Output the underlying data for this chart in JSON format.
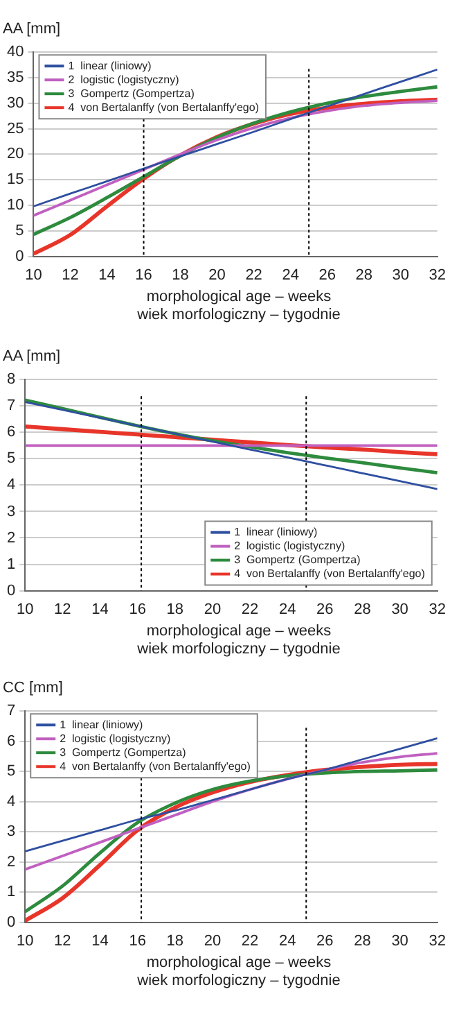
{
  "chart_data": [
    {
      "type": "line",
      "ylabel": "AA [mm]",
      "xlabel": "morphological age – weeks\nwiek morfologiczny – tygodnie",
      "x": [
        10,
        12,
        14,
        16,
        18,
        20,
        22,
        24,
        26,
        28,
        30,
        32
      ],
      "xlim": [
        10,
        32
      ],
      "xticks": [
        10,
        12,
        14,
        16,
        18,
        20,
        22,
        24,
        26,
        28,
        30,
        32
      ],
      "ylim": [
        0,
        40
      ],
      "yticks": [
        0,
        5,
        10,
        15,
        20,
        25,
        30,
        35,
        40
      ],
      "grid": "y",
      "legend": "top left",
      "marker": "none",
      "line_style": "solid",
      "series": [
        {
          "name": "1  linear (liniowy)",
          "color": "#2e4fa0",
          "values": [
            9.8,
            12.3,
            14.7,
            17.2,
            19.6,
            22.0,
            24.4,
            26.9,
            29.4,
            31.8,
            34.2,
            36.6
          ]
        },
        {
          "name": "2  logistic (logistyczny)",
          "color": "#c060c0",
          "values": [
            8.0,
            11.0,
            14.0,
            17.0,
            20.0,
            22.8,
            25.2,
            27.1,
            28.5,
            29.5,
            30.1,
            30.5
          ]
        },
        {
          "name": "3  Gompertz (Gompertza)",
          "color": "#2e8b3e",
          "values": [
            4.3,
            7.6,
            11.5,
            15.6,
            19.7,
            23.3,
            26.1,
            28.3,
            30.0,
            31.3,
            32.3,
            33.2
          ]
        },
        {
          "name": "4  von Bertalanffy (von Bertalanffy'ego)",
          "color": "#e8352a",
          "values": [
            0.5,
            4.2,
            9.8,
            15.2,
            19.8,
            23.4,
            26.0,
            27.9,
            29.1,
            29.9,
            30.4,
            30.7
          ]
        }
      ],
      "ref_lines": [
        {
          "axis": "x",
          "value": 16,
          "color": "#000000",
          "line_style": "dotted"
        },
        {
          "axis": "x",
          "value": 25,
          "color": "#000000",
          "line_style": "dotted"
        }
      ]
    },
    {
      "type": "line",
      "ylabel": "AA [mm]",
      "xlabel": "morphological age – weeks\nwiek morfologiczny – tygodnie",
      "x": [
        10,
        12,
        14,
        16,
        18,
        20,
        22,
        24,
        26,
        28,
        30,
        32
      ],
      "xlim": [
        10,
        32
      ],
      "xticks": [
        10,
        12,
        14,
        16,
        18,
        20,
        22,
        24,
        26,
        28,
        30,
        32
      ],
      "ylim": [
        0,
        8
      ],
      "yticks": [
        0,
        1,
        2,
        3,
        4,
        5,
        6,
        7,
        8
      ],
      "grid": "y",
      "legend": "bottom right",
      "marker": "none",
      "line_style": "solid",
      "series": [
        {
          "name": "1  linear (liniowy)",
          "color": "#2e4fa0",
          "values": [
            7.15,
            6.85,
            6.55,
            6.25,
            5.95,
            5.65,
            5.35,
            5.05,
            4.75,
            4.45,
            4.15,
            3.85
          ]
        },
        {
          "name": "2  logistic (logistyczny)",
          "color": "#c060c0",
          "values": [
            5.5,
            5.5,
            5.5,
            5.5,
            5.5,
            5.5,
            5.5,
            5.5,
            5.5,
            5.5,
            5.5,
            5.5
          ]
        },
        {
          "name": "3  Gompertz (Gompertza)",
          "color": "#2e8b3e",
          "values": [
            7.22,
            6.9,
            6.57,
            6.25,
            5.95,
            5.68,
            5.45,
            5.23,
            5.03,
            4.85,
            4.65,
            4.47
          ]
        },
        {
          "name": "4  von Bertalanffy (von Bertalanffy'ego)",
          "color": "#e8352a",
          "values": [
            6.22,
            6.12,
            6.02,
            5.92,
            5.82,
            5.72,
            5.62,
            5.52,
            5.43,
            5.35,
            5.25,
            5.17
          ]
        }
      ],
      "ref_lines": [
        {
          "axis": "x",
          "value": 16.2,
          "color": "#000000",
          "line_style": "dotted"
        },
        {
          "axis": "x",
          "value": 25,
          "color": "#000000",
          "line_style": "dotted"
        }
      ]
    },
    {
      "type": "line",
      "ylabel": "CC [mm]",
      "xlabel": "morphological age – weeks\nwiek morfologiczny – tygodnie",
      "x": [
        10,
        12,
        14,
        16,
        18,
        20,
        22,
        24,
        26,
        28,
        30,
        32
      ],
      "xlim": [
        10,
        32
      ],
      "xticks": [
        10,
        12,
        14,
        16,
        18,
        20,
        22,
        24,
        26,
        28,
        30,
        32
      ],
      "ylim": [
        0,
        7
      ],
      "yticks": [
        0,
        1,
        2,
        3,
        4,
        5,
        6,
        7
      ],
      "grid": "y",
      "legend": "top left",
      "marker": "none",
      "line_style": "solid",
      "series": [
        {
          "name": "1  linear (liniowy)",
          "color": "#2e4fa0",
          "values": [
            2.35,
            2.7,
            3.05,
            3.4,
            3.7,
            4.05,
            4.4,
            4.75,
            5.05,
            5.4,
            5.75,
            6.1
          ]
        },
        {
          "name": "2  logistic (logistyczny)",
          "color": "#c060c0",
          "values": [
            1.75,
            2.2,
            2.65,
            3.1,
            3.55,
            4.0,
            4.4,
            4.75,
            5.05,
            5.3,
            5.48,
            5.6
          ]
        },
        {
          "name": "3  Gompertz (Gompertza)",
          "color": "#2e8b3e",
          "values": [
            0.35,
            1.2,
            2.3,
            3.3,
            3.95,
            4.4,
            4.68,
            4.85,
            4.95,
            5.0,
            5.02,
            5.05
          ]
        },
        {
          "name": "4  von Bertalanffy (von Bertalanffy'ego)",
          "color": "#e8352a",
          "values": [
            0.05,
            0.8,
            1.9,
            3.05,
            3.8,
            4.3,
            4.65,
            4.88,
            5.05,
            5.15,
            5.22,
            5.25
          ]
        }
      ],
      "ref_lines": [
        {
          "axis": "x",
          "value": 16.2,
          "color": "#000000",
          "line_style": "dotted"
        },
        {
          "axis": "x",
          "value": 25,
          "color": "#000000",
          "line_style": "dotted"
        }
      ]
    }
  ]
}
